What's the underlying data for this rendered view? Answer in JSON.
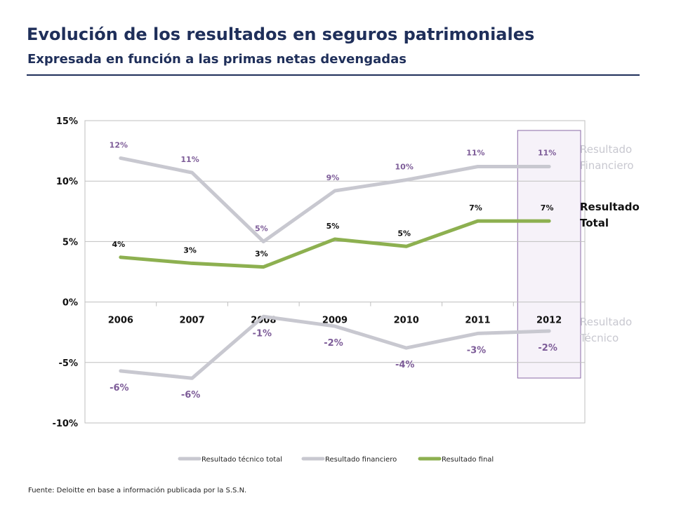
{
  "header": {
    "title": "Evolución de los resultados en seguros patrimoniales",
    "subtitle": "Expresada en función a las primas netas devengadas"
  },
  "side_labels": {
    "financiero": [
      "Resultado",
      "Financiero"
    ],
    "total": [
      "Resultado",
      "Total"
    ],
    "tecnico": [
      "Resultado",
      "Técnico"
    ]
  },
  "footer": {
    "source": "Fuente: Deloitte en base a  información publicada por la S.S.N."
  },
  "colors": {
    "tecnico": "#c8c8d0",
    "financiero": "#c8c8d0",
    "final": "#8db050",
    "label_purple": "#7d5c98",
    "label_dark": "#111111",
    "highlight_border": "#8a6aa6",
    "highlight_fill": "#f6f2f9"
  },
  "chart_data": {
    "type": "line",
    "x": [
      "2006",
      "2007",
      "2008",
      "2009",
      "2010",
      "2011",
      "2012"
    ],
    "ylim": [
      -10,
      15
    ],
    "yticks": [
      "15%",
      "10%",
      "5%",
      "0%",
      "-5%",
      "-10%"
    ],
    "ytick_values": [
      15,
      10,
      5,
      0,
      -5,
      -10
    ],
    "highlight_category": "2012",
    "series": [
      {
        "key": "tecnico",
        "name": "Resultado técnico total",
        "values": [
          -5.7,
          -6.3,
          -1.2,
          -2.0,
          -3.8,
          -2.6,
          -2.4
        ],
        "labels": [
          "-6%",
          "-6%",
          "-1%",
          "-2%",
          "-4%",
          "-3%",
          "-2%"
        ]
      },
      {
        "key": "financiero",
        "name": "Resultado financiero",
        "values": [
          11.9,
          10.7,
          5.0,
          9.2,
          10.1,
          11.2,
          11.2
        ],
        "labels": [
          "12%",
          "11%",
          "5%",
          "9%",
          "10%",
          "11%",
          "11%"
        ]
      },
      {
        "key": "final",
        "name": "Resultado final",
        "values": [
          3.7,
          3.2,
          2.9,
          5.2,
          4.6,
          6.7,
          6.7
        ],
        "labels": [
          "4%",
          "3%",
          "3%",
          "5%",
          "5%",
          "7%",
          "7%"
        ]
      }
    ]
  }
}
